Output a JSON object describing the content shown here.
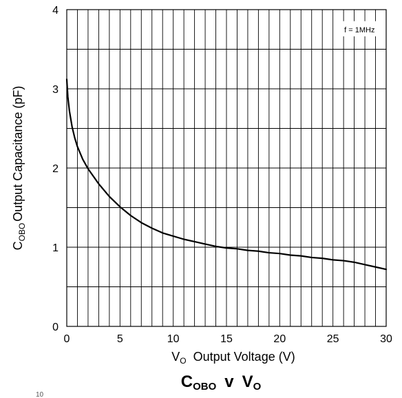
{
  "chart_data": {
    "type": "line",
    "xlim": [
      0,
      30
    ],
    "ylim": [
      0,
      4
    ],
    "x_ticks": [
      0,
      5,
      10,
      15,
      20,
      25,
      30
    ],
    "y_ticks": [
      0,
      1,
      2,
      3,
      4
    ],
    "grid": true,
    "x_label": {
      "main": "V",
      "sub": "O",
      "rest": "Output Voltage (V)"
    },
    "y_label": {
      "main": "C",
      "sub": "OBO",
      "rest": "Output Capacitance (pF)"
    },
    "annotation": "f = 1MHz",
    "caption": {
      "c": "C",
      "c_sub": "OBO",
      "v": "v",
      "vo": "V",
      "vo_sub": "O"
    },
    "footer": "10",
    "series": [
      {
        "x": [
          0,
          0.1,
          0.25,
          0.5,
          0.75,
          1,
          1.5,
          2,
          3,
          4,
          5,
          6,
          7,
          8,
          9,
          10,
          11,
          12,
          13,
          14,
          15,
          16,
          17,
          18,
          19,
          20,
          21,
          22,
          23,
          24,
          25,
          26,
          27,
          28,
          29,
          30
        ],
        "values": [
          3.12,
          2.9,
          2.72,
          2.52,
          2.38,
          2.27,
          2.11,
          1.99,
          1.8,
          1.64,
          1.51,
          1.4,
          1.31,
          1.24,
          1.18,
          1.14,
          1.1,
          1.07,
          1.04,
          1.01,
          0.99,
          0.98,
          0.96,
          0.95,
          0.93,
          0.92,
          0.9,
          0.89,
          0.87,
          0.86,
          0.84,
          0.83,
          0.81,
          0.78,
          0.75,
          0.72
        ]
      }
    ]
  }
}
